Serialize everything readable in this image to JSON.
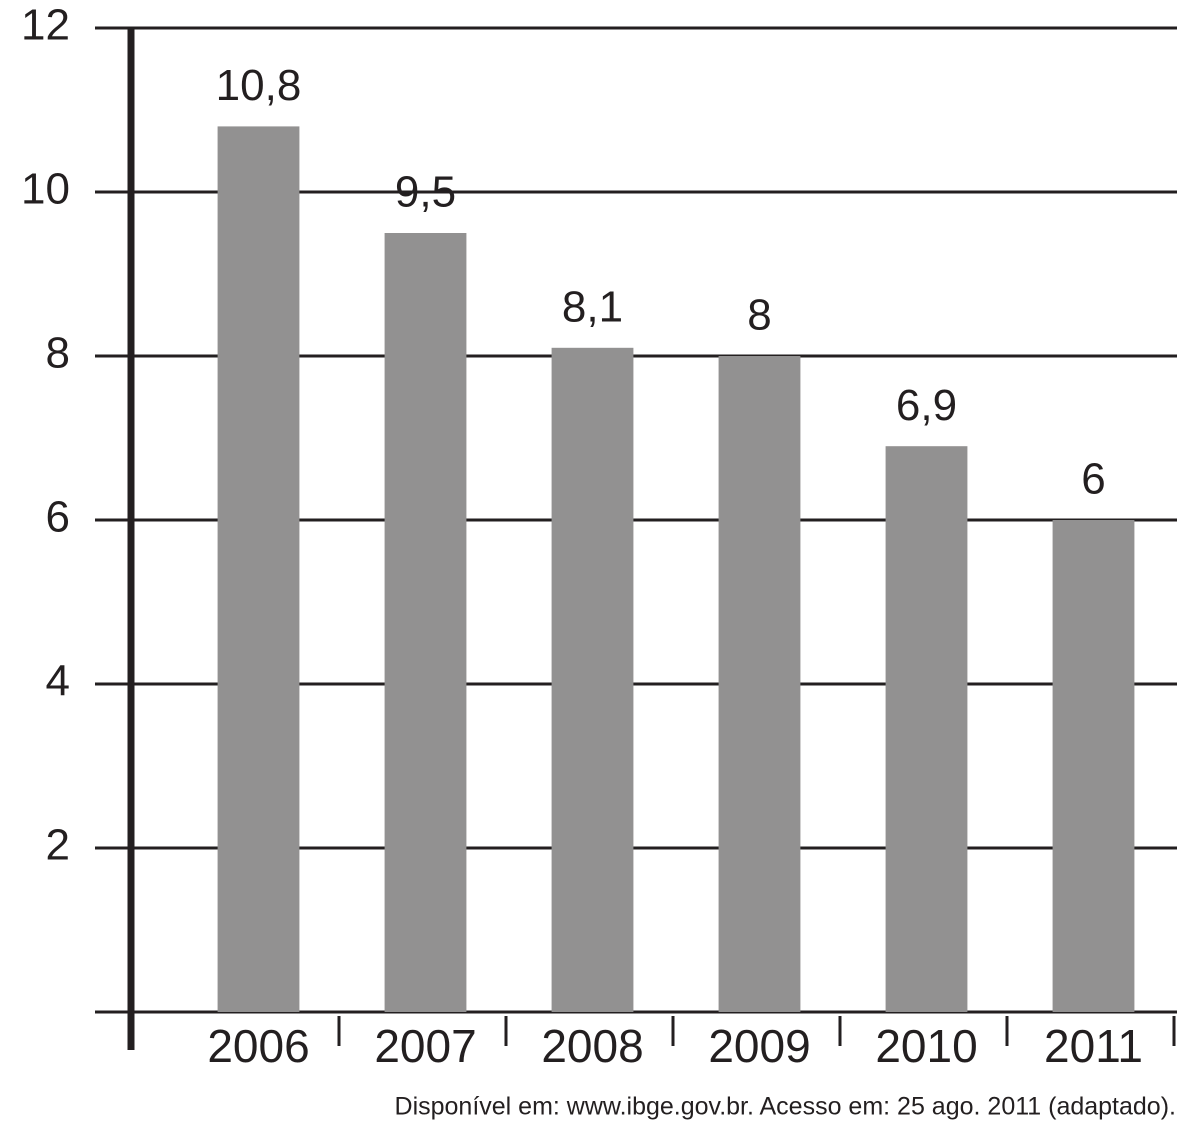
{
  "chart_data": {
    "type": "bar",
    "categories": [
      "2006",
      "2007",
      "2008",
      "2009",
      "2010",
      "2011"
    ],
    "values": [
      10.8,
      9.5,
      8.1,
      8,
      6.9,
      6
    ],
    "value_labels": [
      "10,8",
      "9,5",
      "8,1",
      "8",
      "6,9",
      "6"
    ],
    "color": "#929191",
    "ylim": [
      0,
      12
    ],
    "yticks": [
      2,
      4,
      6,
      8,
      10,
      12
    ],
    "grid": true,
    "source": "Disponível em: www.ibge.gov.br. Acesso em: 25 ago. 2011 (adaptado)."
  }
}
